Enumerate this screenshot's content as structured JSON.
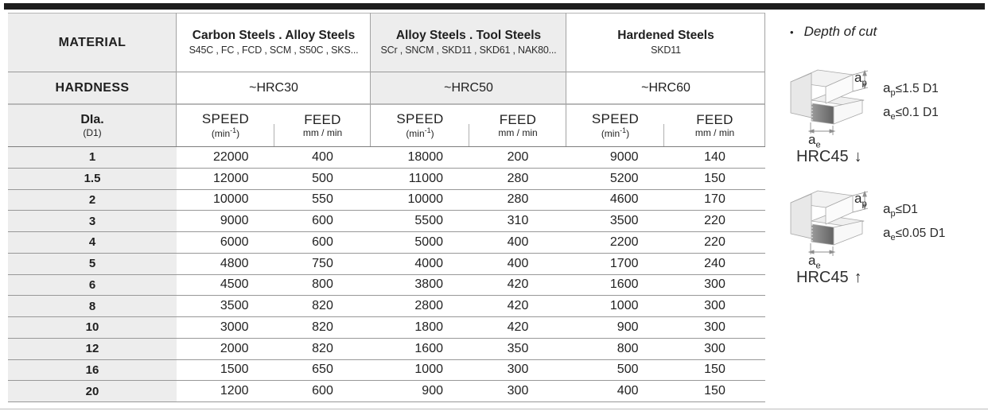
{
  "colors": {
    "top_bar": "#1e1e1e",
    "shade": "#ededed",
    "rule_dark": "#8f8f8f",
    "rule_light": "#b8b8b8",
    "cut_face_dark": "#636363"
  },
  "table": {
    "material_label": "MATERIAL",
    "hardness_label": "HARDNESS",
    "dia_label": "DIa.",
    "dia_sublabel": "(D1)",
    "speed_label": "SPEED",
    "speed_unit": {
      "pre": "(min",
      "sup": "-1",
      "post": ")"
    },
    "feed_label": "FEED",
    "feed_unit": "mm / min",
    "groups": [
      {
        "name": "Carbon Steels . Alloy Steels",
        "examples": "S45C , FC , FCD , SCM , S50C , SKS...",
        "hardness": "~HRC30"
      },
      {
        "name": "Alloy Steels . Tool Steels",
        "examples": "SCr , SNCM , SKD11 , SKD61 , NAK80...",
        "hardness": "~HRC50"
      },
      {
        "name": "Hardened Steels",
        "examples": "SKD11",
        "hardness": "~HRC60"
      }
    ],
    "rows": [
      {
        "dia": "1",
        "values": [
          "22000",
          "400",
          "18000",
          "200",
          "9000",
          "140"
        ]
      },
      {
        "dia": "1.5",
        "values": [
          "12000",
          "500",
          "11000",
          "280",
          "5200",
          "150"
        ]
      },
      {
        "dia": "2",
        "values": [
          "10000",
          "550",
          "10000",
          "280",
          "4600",
          "170"
        ]
      },
      {
        "dia": "3",
        "values": [
          "9000",
          "600",
          "5500",
          "310",
          "3500",
          "220"
        ]
      },
      {
        "dia": "4",
        "values": [
          "6000",
          "600",
          "5000",
          "400",
          "2200",
          "220"
        ]
      },
      {
        "dia": "5",
        "values": [
          "4800",
          "750",
          "4000",
          "400",
          "1700",
          "240"
        ]
      },
      {
        "dia": "6",
        "values": [
          "4500",
          "800",
          "3800",
          "420",
          "1600",
          "300"
        ]
      },
      {
        "dia": "8",
        "values": [
          "3500",
          "820",
          "2800",
          "420",
          "1000",
          "300"
        ]
      },
      {
        "dia": "10",
        "values": [
          "3000",
          "820",
          "1800",
          "420",
          "900",
          "300"
        ]
      },
      {
        "dia": "12",
        "values": [
          "2000",
          "820",
          "1600",
          "350",
          "800",
          "300"
        ]
      },
      {
        "dia": "16",
        "values": [
          "1500",
          "650",
          "1000",
          "300",
          "500",
          "150"
        ]
      },
      {
        "dia": "20",
        "values": [
          "1200",
          "600",
          "900",
          "300",
          "400",
          "150"
        ]
      }
    ]
  },
  "side": {
    "bullet": "•",
    "title": "Depth of cut",
    "dims": {
      "ap_base": "a",
      "ap_sub": "p",
      "ae_base": "a",
      "ae_sub": "e"
    },
    "diagrams": [
      {
        "ap_cond": "≤1.5 D1",
        "ae_cond": "≤0.1 D1",
        "caption": "HRC45",
        "arrow": "↓"
      },
      {
        "ap_cond": "≤D1",
        "ae_cond": "≤0.05 D1",
        "caption": "HRC45",
        "arrow": "↑"
      }
    ]
  }
}
